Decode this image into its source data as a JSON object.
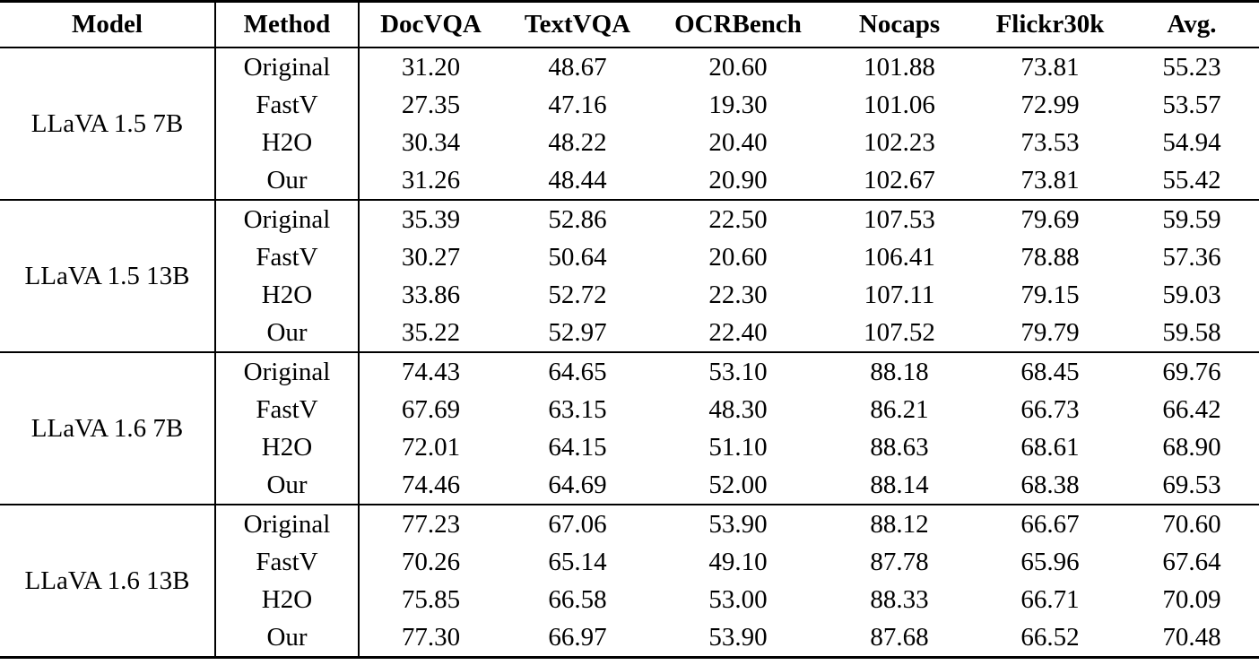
{
  "table": {
    "columns": [
      "Model",
      "Method",
      "DocVQA",
      "TextVQA",
      "OCRBench",
      "Nocaps",
      "Flickr30k",
      "Avg."
    ],
    "groups": [
      {
        "model": "LLaVA 1.5 7B",
        "rows": [
          {
            "method": "Original",
            "bold": false,
            "values": [
              "31.20",
              "48.67",
              "20.60",
              "101.88",
              "73.81",
              "55.23"
            ]
          },
          {
            "method": "FastV",
            "bold": false,
            "values": [
              "27.35",
              "47.16",
              "19.30",
              "101.06",
              "72.99",
              "53.57"
            ]
          },
          {
            "method": "H2O",
            "bold": false,
            "values": [
              "30.34",
              "48.22",
              "20.40",
              "102.23",
              "73.53",
              "54.94"
            ]
          },
          {
            "method": "Our",
            "bold": true,
            "values": [
              "31.26",
              "48.44",
              "20.90",
              "102.67",
              "73.81",
              "55.42"
            ]
          }
        ]
      },
      {
        "model": "LLaVA 1.5 13B",
        "rows": [
          {
            "method": "Original",
            "bold": false,
            "values": [
              "35.39",
              "52.86",
              "22.50",
              "107.53",
              "79.69",
              "59.59"
            ]
          },
          {
            "method": "FastV",
            "bold": false,
            "values": [
              "30.27",
              "50.64",
              "20.60",
              "106.41",
              "78.88",
              "57.36"
            ]
          },
          {
            "method": "H2O",
            "bold": false,
            "values": [
              "33.86",
              "52.72",
              "22.30",
              "107.11",
              "79.15",
              "59.03"
            ]
          },
          {
            "method": "Our",
            "bold": true,
            "values": [
              "35.22",
              "52.97",
              "22.40",
              "107.52",
              "79.79",
              "59.58"
            ]
          }
        ]
      },
      {
        "model": "LLaVA 1.6 7B",
        "rows": [
          {
            "method": "Original",
            "bold": false,
            "values": [
              "74.43",
              "64.65",
              "53.10",
              "88.18",
              "68.45",
              "69.76"
            ]
          },
          {
            "method": "FastV",
            "bold": false,
            "values": [
              "67.69",
              "63.15",
              "48.30",
              "86.21",
              "66.73",
              "66.42"
            ]
          },
          {
            "method": "H2O",
            "bold": false,
            "values": [
              "72.01",
              "64.15",
              "51.10",
              "88.63",
              "68.61",
              "68.90"
            ]
          },
          {
            "method": "Our",
            "bold": true,
            "values": [
              "74.46",
              "64.69",
              "52.00",
              "88.14",
              "68.38",
              "69.53"
            ]
          }
        ]
      },
      {
        "model": "LLaVA 1.6 13B",
        "rows": [
          {
            "method": "Original",
            "bold": false,
            "values": [
              "77.23",
              "67.06",
              "53.90",
              "88.12",
              "66.67",
              "70.60"
            ]
          },
          {
            "method": "FastV",
            "bold": false,
            "values": [
              "70.26",
              "65.14",
              "49.10",
              "87.78",
              "65.96",
              "67.64"
            ]
          },
          {
            "method": "H2O",
            "bold": false,
            "values": [
              "75.85",
              "66.58",
              "53.00",
              "88.33",
              "66.71",
              "70.09"
            ]
          },
          {
            "method": "Our",
            "bold": true,
            "values": [
              "77.30",
              "66.97",
              "53.90",
              "87.68",
              "66.52",
              "70.48"
            ]
          }
        ]
      }
    ]
  }
}
